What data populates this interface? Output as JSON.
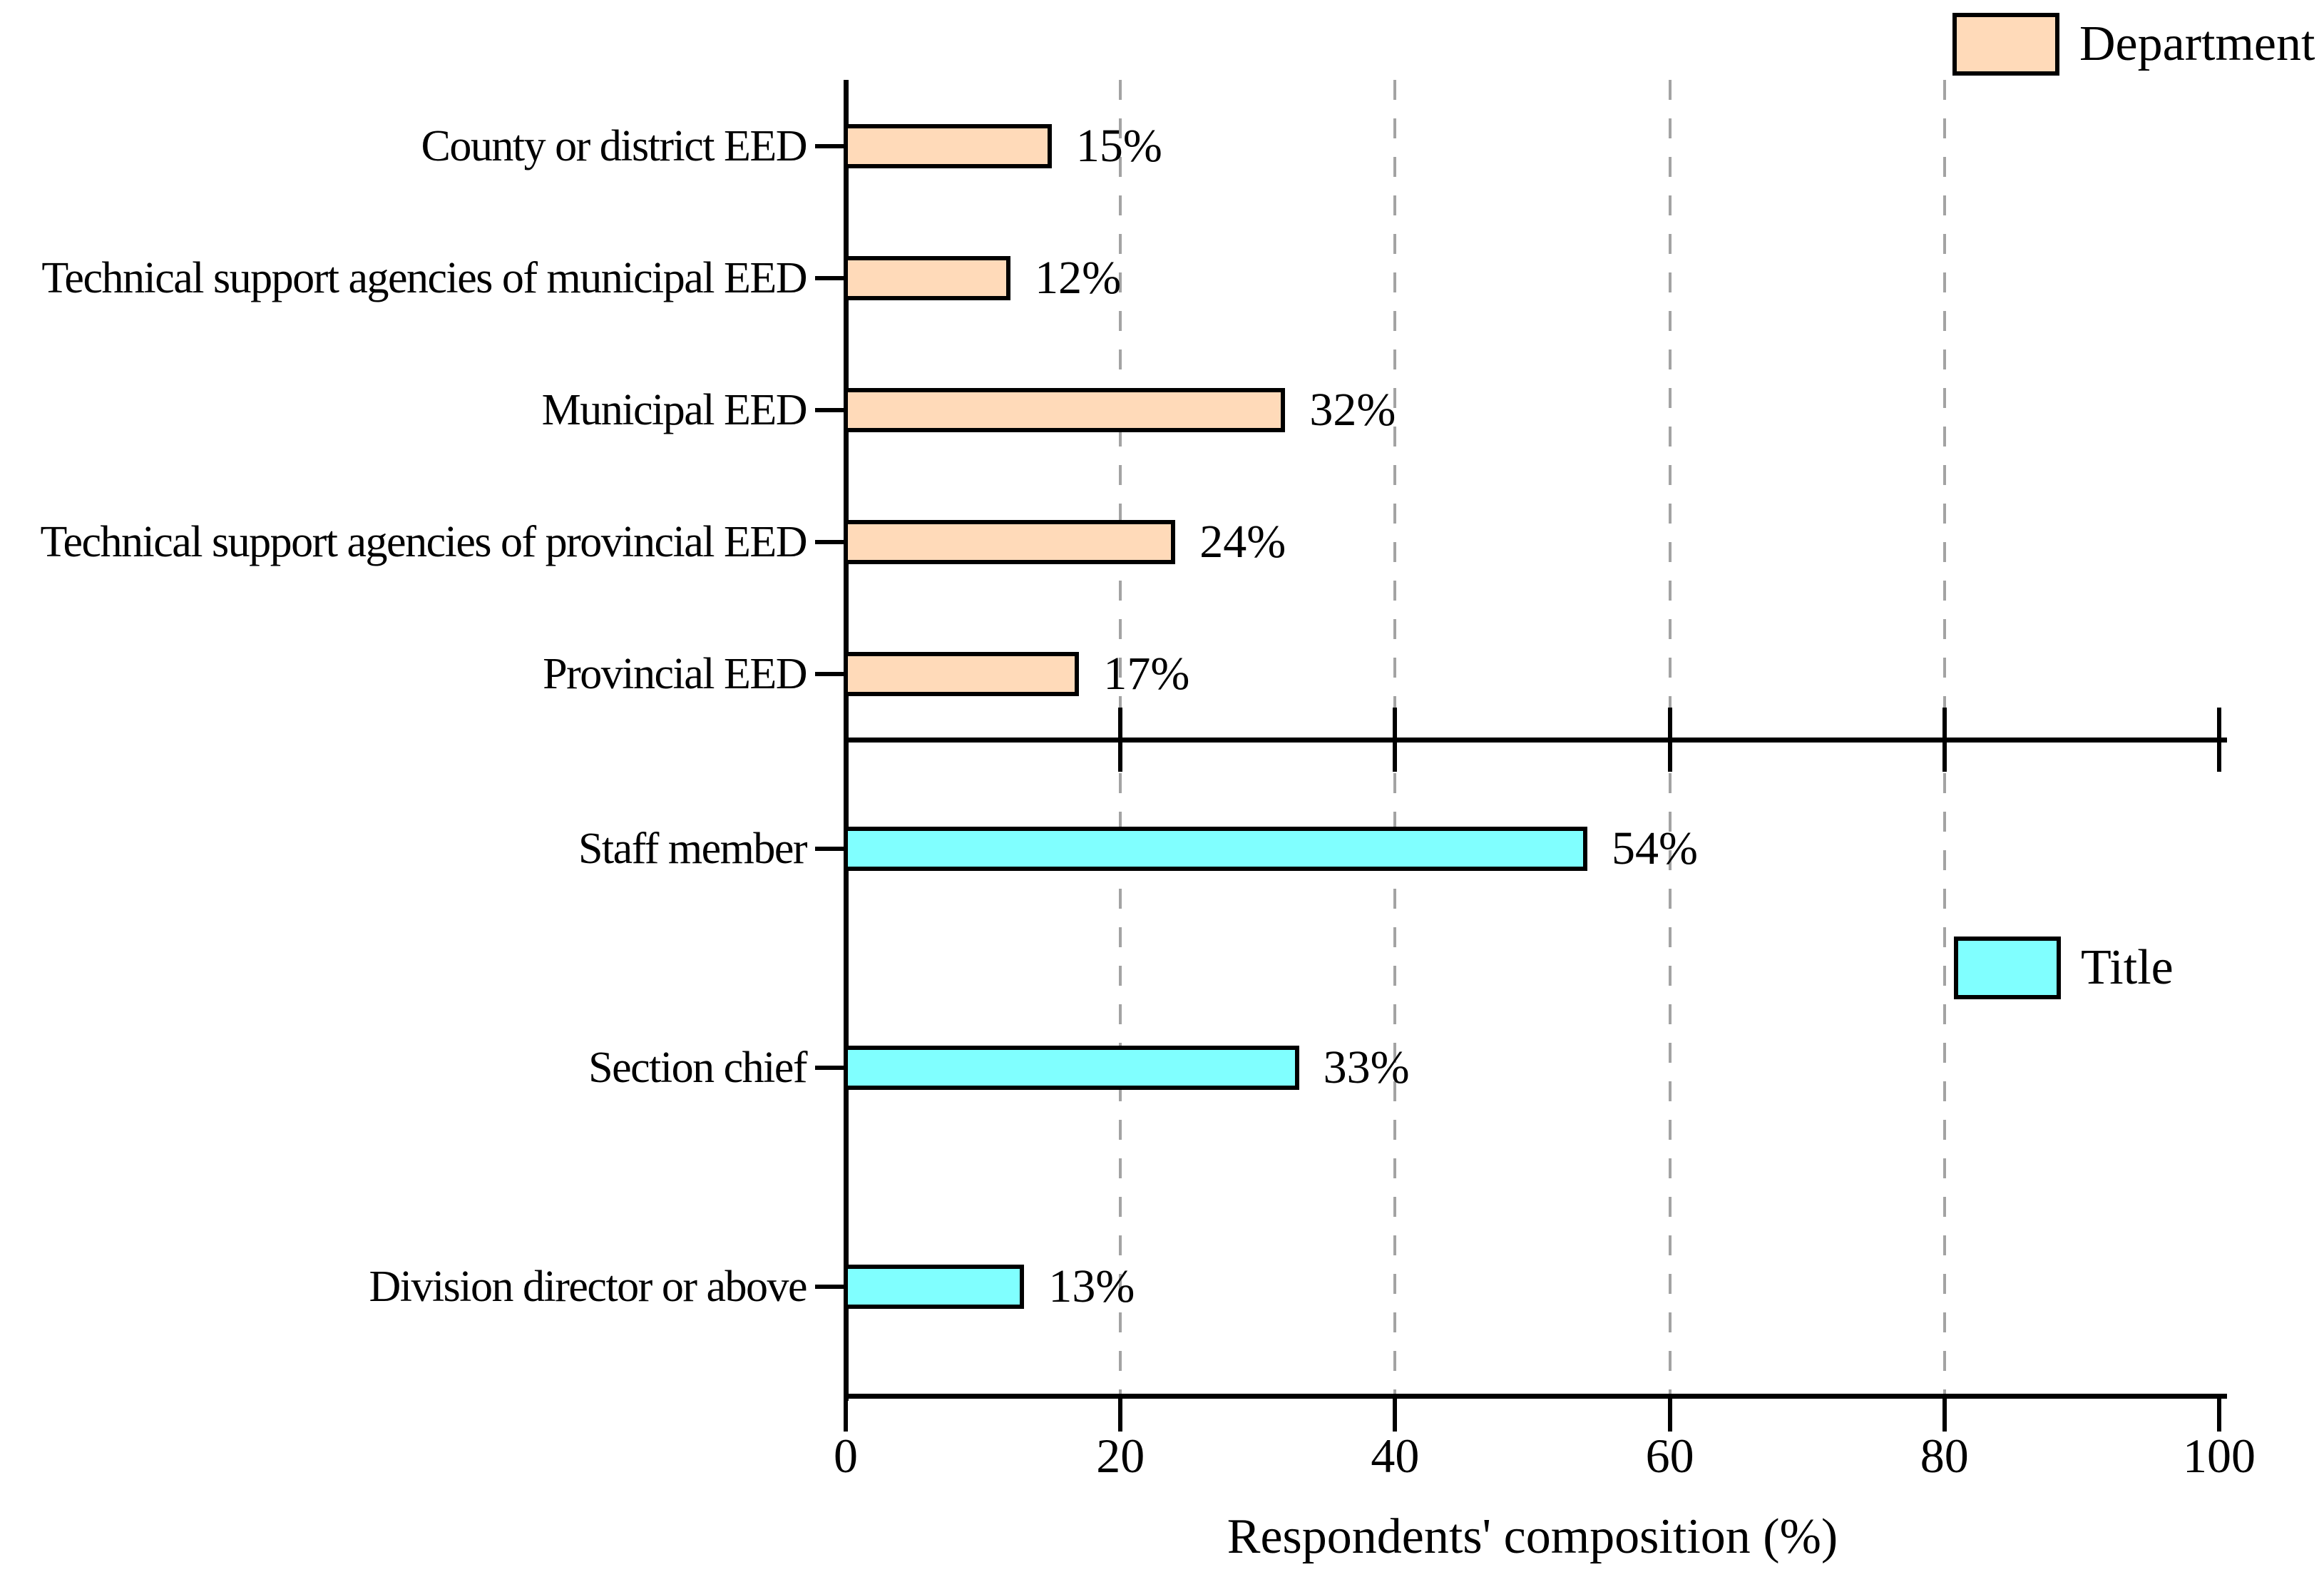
{
  "figure": {
    "background": "#ffffff",
    "axis_color": "#000000",
    "gridline_color": "#a3a3a3",
    "bar_border_color": "#000000"
  },
  "chart_data": {
    "type": "bar",
    "orientation": "horizontal",
    "title": "",
    "xlabel": "Respondents' composition (%)",
    "ylabel": "",
    "xlim": [
      0,
      100
    ],
    "x_ticks": [
      "0",
      "20",
      "40",
      "60",
      "80",
      "100"
    ],
    "x_tick_values": [
      0,
      20,
      40,
      60,
      80,
      100
    ],
    "gridlines_at": [
      20,
      40,
      60,
      80
    ],
    "grid_style": "dashed-vertical",
    "panels": [
      {
        "name": "department-panel",
        "legend": {
          "label": "Department",
          "color": "#ffdab9"
        },
        "bar_color": "#ffdab9",
        "categories": [
          "County or district EED",
          "Technical support agencies of municipal EED",
          "Municipal EED",
          "Technical support agencies of provincial EED",
          "Provincial EED"
        ],
        "values": [
          15,
          12,
          32,
          24,
          17
        ],
        "value_labels": [
          "15%",
          "12%",
          "32%",
          "24%",
          "17%"
        ]
      },
      {
        "name": "title-panel",
        "legend": {
          "label": "Title",
          "color": "#80ffff"
        },
        "bar_color": "#80ffff",
        "categories": [
          "Staff member",
          "Section chief",
          "Division director or above"
        ],
        "values": [
          54,
          33,
          13
        ],
        "value_labels": [
          "54%",
          "33%",
          "13%"
        ]
      }
    ]
  }
}
